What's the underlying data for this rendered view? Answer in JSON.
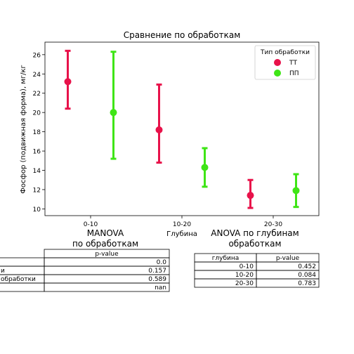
{
  "chart_data": {
    "type": "scatter",
    "title": "Сравнение по обработкам",
    "xlabel": "Глубина",
    "ylabel": "Фосфор (подвижная форма), мг/кг",
    "categories": [
      "0-10",
      "10-20",
      "20-30"
    ],
    "ylim": [
      9.3,
      27.3
    ],
    "yticks": [
      10,
      12,
      14,
      16,
      18,
      20,
      22,
      24,
      26
    ],
    "legend": {
      "title": "Тип обработки",
      "placement": "top-right"
    },
    "grid": false,
    "series": [
      {
        "name": "ТТ",
        "color": "#e8124a",
        "values": [
          23.2,
          18.2,
          11.4
        ],
        "lower": [
          20.4,
          14.8,
          10.1
        ],
        "upper": [
          26.4,
          22.9,
          13.0
        ]
      },
      {
        "name": "ПП",
        "color": "#3fe516",
        "values": [
          20.0,
          14.3,
          11.9
        ],
        "lower": [
          15.2,
          12.3,
          10.2
        ],
        "upper": [
          26.3,
          16.3,
          13.6
        ]
      }
    ]
  },
  "manova": {
    "title_line1": "MANOVA",
    "title_line2": "по обработкам",
    "header": "p-value",
    "rows": [
      {
        "label": "",
        "value": "0.0"
      },
      {
        "label": "и",
        "value": "0.157"
      },
      {
        "label": "обработки",
        "value": "0.589"
      },
      {
        "label": "",
        "value": "nan"
      }
    ]
  },
  "anova": {
    "title_line1": "ANOVA по глубинам",
    "title_line2": "обработкам",
    "headers": [
      "глубина",
      "p-value"
    ],
    "rows": [
      {
        "depth": "0-10",
        "value": "0.452"
      },
      {
        "depth": "10-20",
        "value": "0.084"
      },
      {
        "depth": "20-30",
        "value": "0.783"
      }
    ]
  }
}
